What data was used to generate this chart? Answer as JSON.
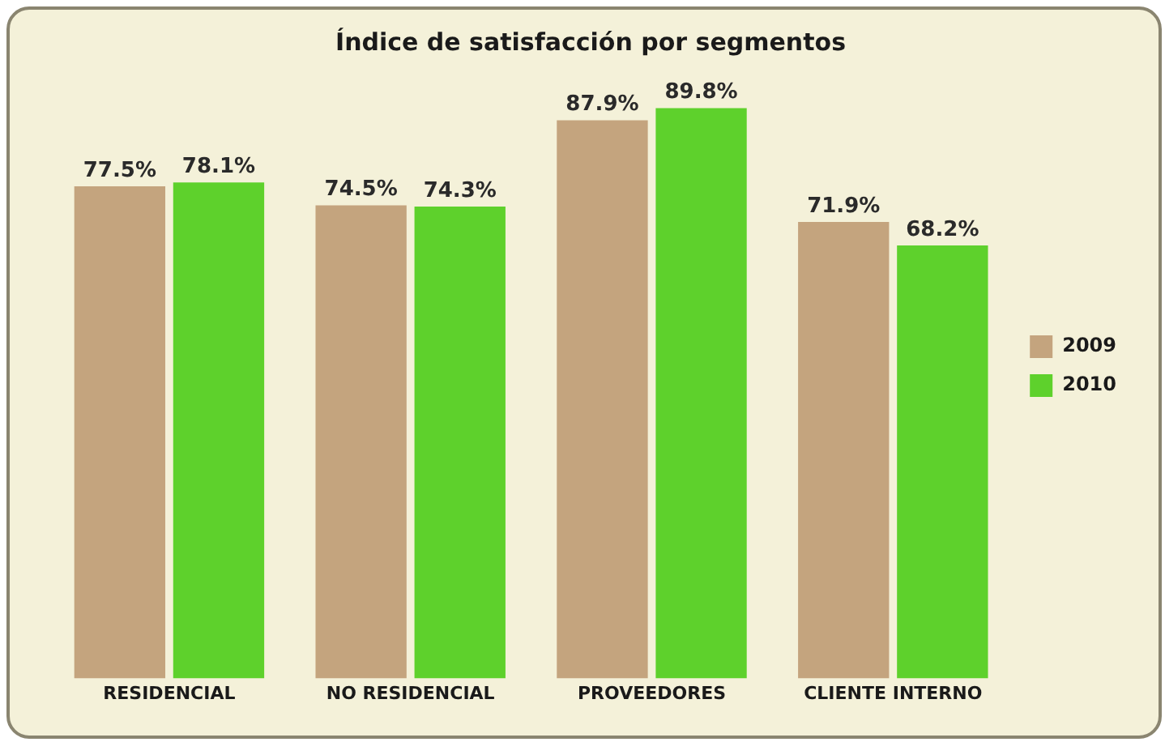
{
  "chart_data": {
    "type": "bar",
    "title": "Índice de satisfacción por segmentos",
    "categories": [
      "RESIDENCIAL",
      "NO RESIDENCIAL",
      "PROVEEDORES",
      "CLIENTE INTERNO"
    ],
    "series": [
      {
        "name": "2009",
        "color": "#c4a47e",
        "values": [
          77.5,
          74.5,
          87.9,
          71.9
        ],
        "value_labels": [
          "77.5%",
          "74.5%",
          "87.9%",
          "71.9%"
        ]
      },
      {
        "name": "2010",
        "color": "#5ed12c",
        "values": [
          78.1,
          74.3,
          89.8,
          68.2
        ],
        "value_labels": [
          "78.1%",
          "74.3%",
          "89.8%",
          "68.2%"
        ]
      }
    ],
    "legend": "right",
    "grid": false
  }
}
